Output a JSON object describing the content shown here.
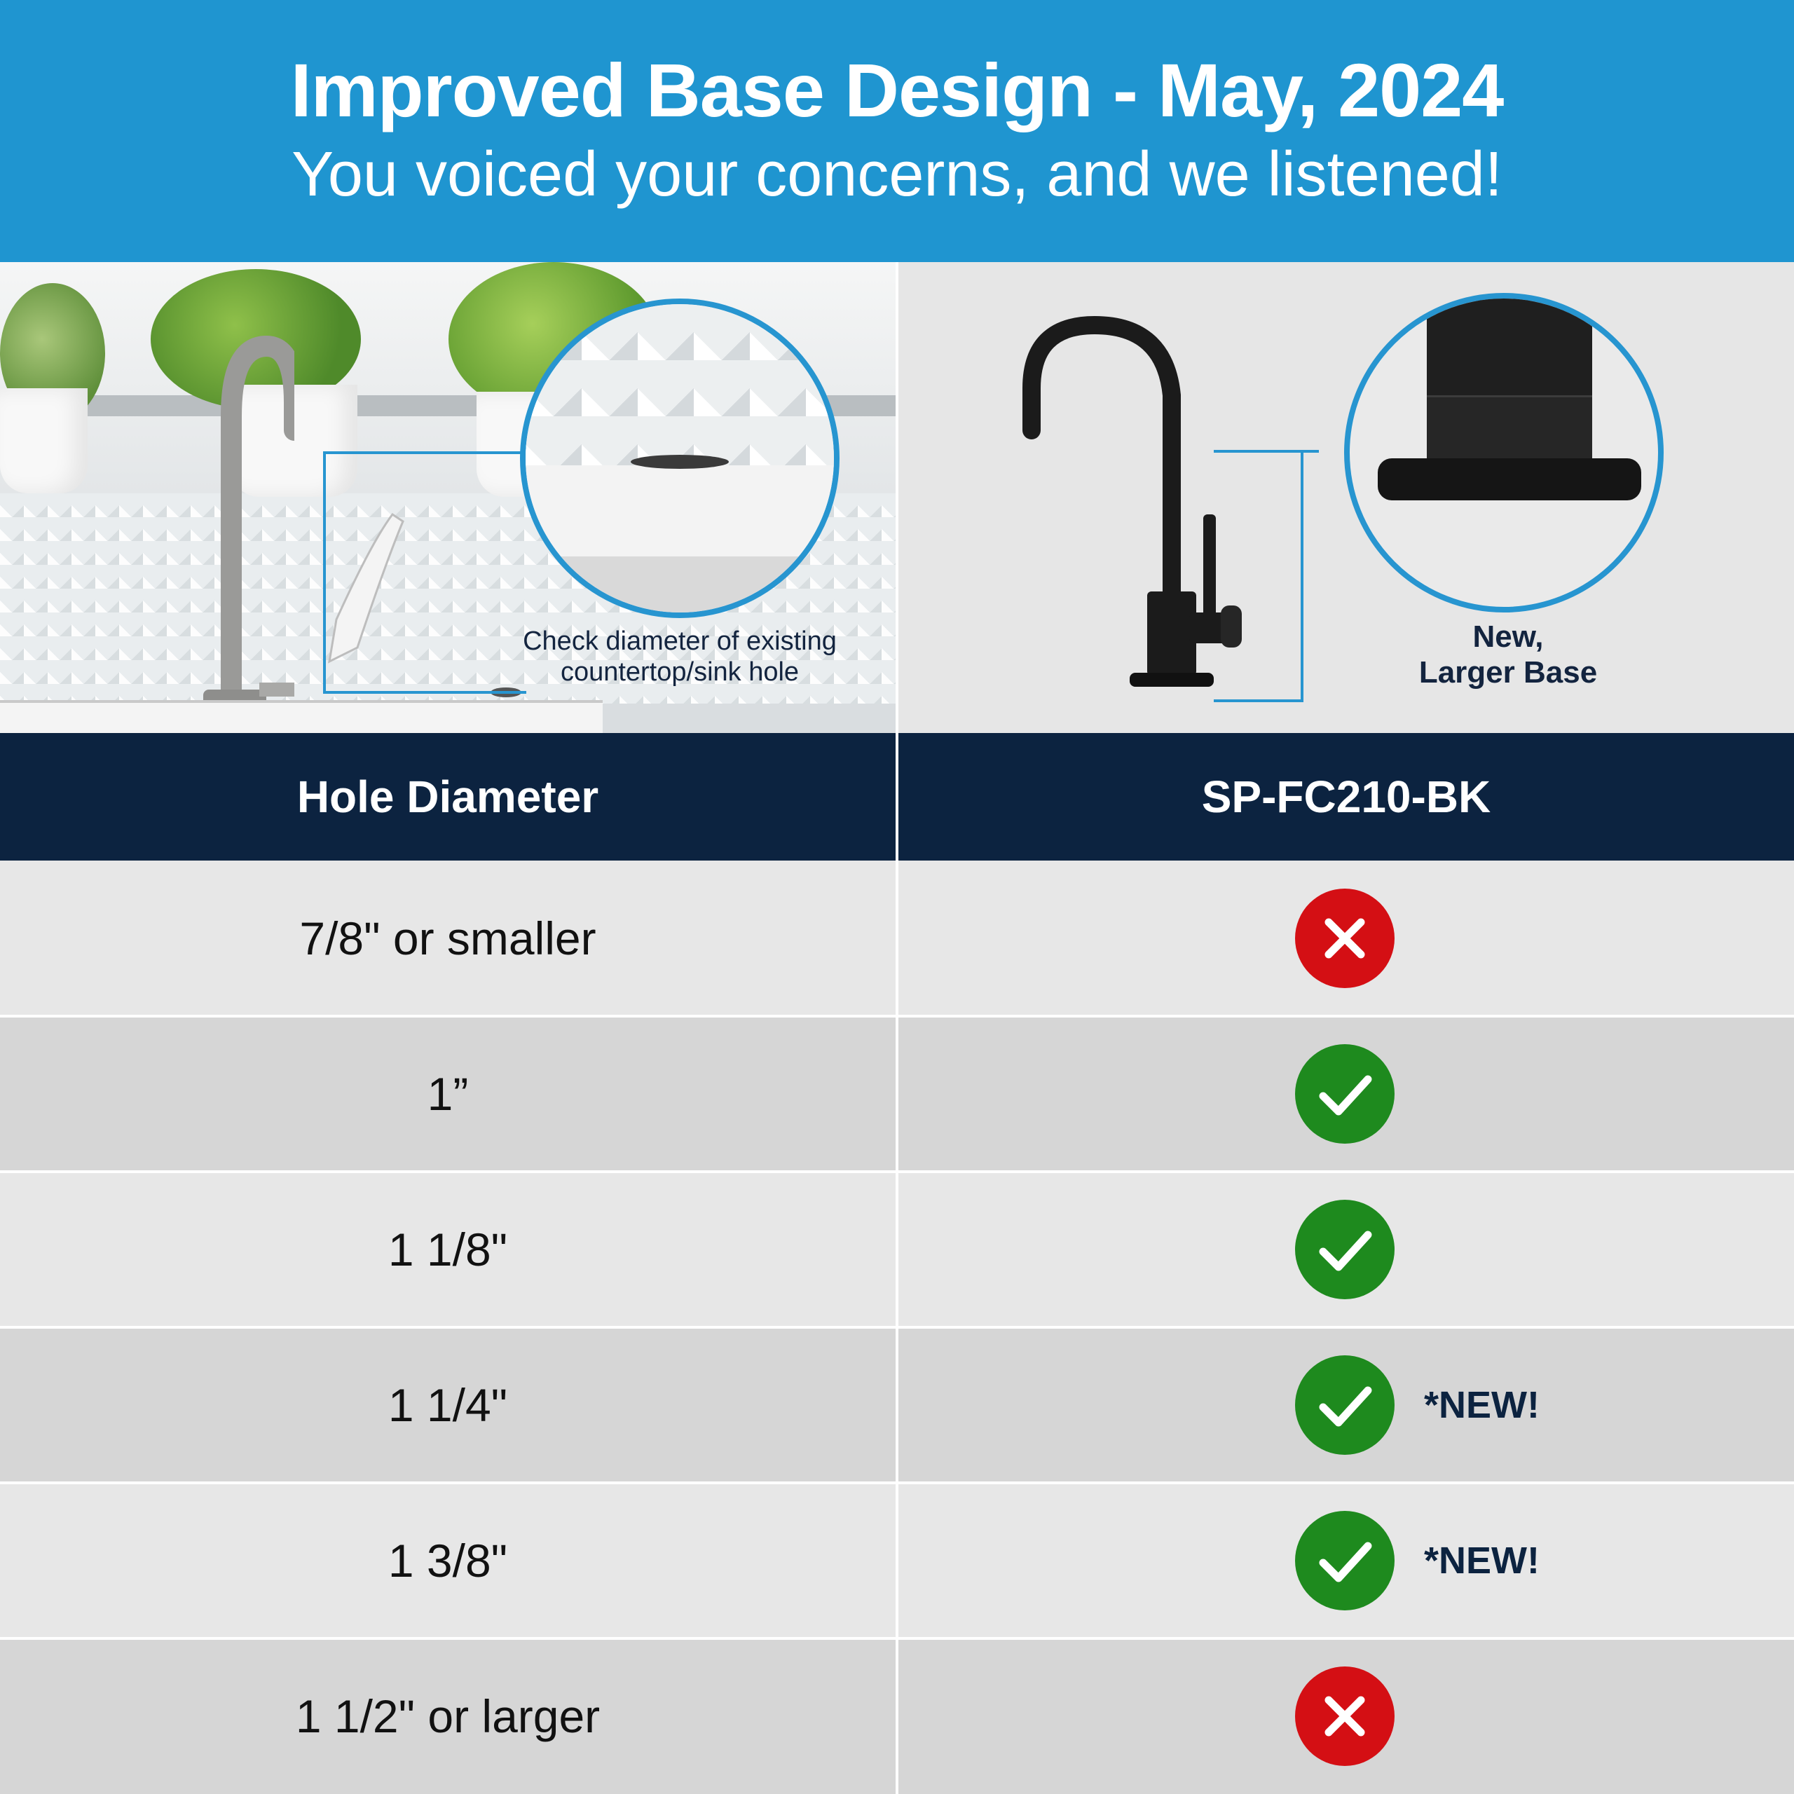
{
  "header": {
    "title": "Improved Base Design - May, 2024",
    "subtitle": "You voiced your concerns, and we listened!"
  },
  "left_panel": {
    "caption_line1": "Check diameter of  existing",
    "caption_line2": "countertop/sink hole"
  },
  "right_panel": {
    "caption_line1": "New,",
    "caption_line2": "Larger Base"
  },
  "table": {
    "headers": [
      "Hole Diameter",
      "SP-FC210-BK"
    ],
    "rows": [
      {
        "size": "7/8\" or smaller",
        "fits": false,
        "note": ""
      },
      {
        "size": "1”",
        "fits": true,
        "note": ""
      },
      {
        "size": "1 1/8\"",
        "fits": true,
        "note": ""
      },
      {
        "size": "1 1/4\"",
        "fits": true,
        "note": "*NEW!"
      },
      {
        "size": "1 3/8\"",
        "fits": true,
        "note": "*NEW!"
      },
      {
        "size": "1 1/2\" or larger",
        "fits": false,
        "note": ""
      }
    ]
  },
  "colors": {
    "header_bg": "#1f95d0",
    "table_header_bg": "#0c2340",
    "row_light": "#e7e7e7",
    "row_dark": "#d6d6d6",
    "check_green": "#1e8a1e",
    "cross_red": "#d40f14",
    "callout_blue": "#2795d0"
  },
  "icons": {
    "fits_true": "check-circle-icon",
    "fits_false": "x-circle-icon"
  }
}
